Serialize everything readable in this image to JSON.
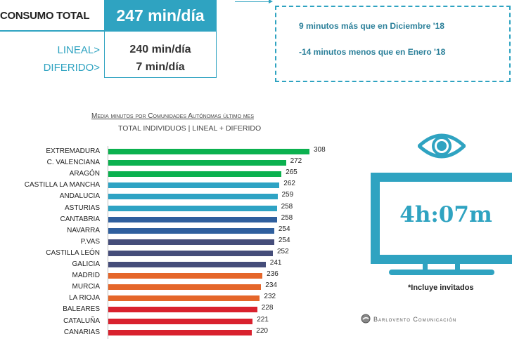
{
  "summary": {
    "total_label": "CONSUMO TOTAL",
    "total_value": "247 min/día",
    "lineal_label": "LINEAL>",
    "lineal_value": "240 min/día",
    "diferido_label": "DIFERIDO>",
    "diferido_value": "7 min/día"
  },
  "comparison": {
    "line1": "9 minutos más que en Diciembre '18",
    "line2": "-14 minutos menos que en Enero '18"
  },
  "chart_data": {
    "type": "bar",
    "orientation": "horizontal",
    "title": "Media minutos por Comunidades Autónomas último mes",
    "subtitle": "TOTAL INDIVIDUOS  | LINEAL + DIFERIDO",
    "categories": [
      "EXTREMADURA",
      "C. VALENCIANA",
      "ARAGÓN",
      "CASTILLA LA MANCHA",
      "ANDALUCIA",
      "ASTURIAS",
      "CANTABRIA",
      "NAVARRA",
      "P.VAS",
      "CASTILLA LEÓN",
      "GALICIA",
      "MADRID",
      "MURCIA",
      "LA RIOJA",
      "BALEARES",
      "CATALUÑA",
      "CANARIAS"
    ],
    "values": [
      308,
      272,
      265,
      262,
      259,
      258,
      258,
      254,
      254,
      252,
      241,
      236,
      234,
      232,
      228,
      221,
      220
    ],
    "colors": [
      "#0bb14f",
      "#0bb14f",
      "#0bb14f",
      "#2ea3c4",
      "#2ea3c4",
      "#2ea3c4",
      "#2f5f9e",
      "#2f5f9e",
      "#454d7a",
      "#454d7a",
      "#454d7a",
      "#e5662a",
      "#e5662a",
      "#e5662a",
      "#d9212e",
      "#d9212e",
      "#d9212e"
    ],
    "xlim": [
      0,
      308
    ],
    "grid": false
  },
  "tv": {
    "value": "4h:07m",
    "note": "*Incluye invitados"
  },
  "logo": {
    "text": "Barlovento Comunicación"
  },
  "accent": "#2fa3c1"
}
